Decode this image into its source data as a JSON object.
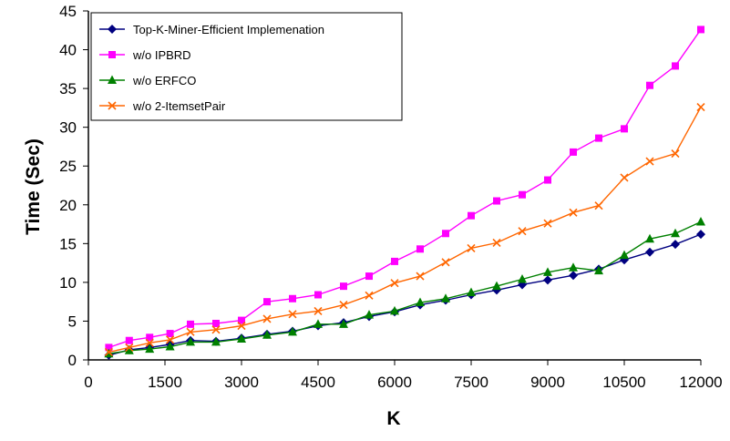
{
  "chart_data": {
    "type": "line",
    "title": "",
    "xlabel": "K",
    "ylabel": "Time (Sec)",
    "xlim": [
      0,
      12000
    ],
    "ylim": [
      0,
      45
    ],
    "xticks": [
      0,
      1500,
      3000,
      4500,
      6000,
      7500,
      9000,
      10500,
      12000
    ],
    "yticks": [
      0,
      5,
      10,
      15,
      20,
      25,
      30,
      35,
      40,
      45
    ],
    "grid": false,
    "legend_position": "top-left",
    "x": [
      400,
      800,
      1200,
      1600,
      2000,
      2500,
      3000,
      3500,
      4000,
      4500,
      5000,
      5500,
      6000,
      6500,
      7000,
      7500,
      8000,
      8500,
      9000,
      9500,
      10000,
      10500,
      11000,
      11500,
      12000
    ],
    "series": [
      {
        "name": "Top-K-Miner-Efficient Implemenation",
        "color": "#000080",
        "marker": "diamond",
        "values": [
          0.6,
          1.3,
          1.6,
          2.0,
          2.5,
          2.4,
          2.8,
          3.3,
          3.7,
          4.4,
          4.8,
          5.6,
          6.2,
          7.1,
          7.7,
          8.4,
          9.0,
          9.7,
          10.3,
          10.9,
          11.7,
          12.9,
          13.9,
          14.9,
          16.2
        ]
      },
      {
        "name": "w/o IPBRD",
        "color": "#ff00ff",
        "marker": "square",
        "values": [
          1.6,
          2.5,
          2.9,
          3.4,
          4.6,
          4.7,
          5.1,
          7.5,
          7.9,
          8.4,
          9.5,
          10.8,
          12.7,
          14.3,
          16.3,
          18.6,
          20.5,
          21.3,
          23.2,
          26.8,
          28.6,
          29.8,
          35.4,
          37.9,
          42.6
        ]
      },
      {
        "name": "w/o ERFCO",
        "color": "#008000",
        "marker": "triangle",
        "values": [
          0.8,
          1.2,
          1.4,
          1.7,
          2.3,
          2.3,
          2.7,
          3.2,
          3.6,
          4.6,
          4.6,
          5.8,
          6.3,
          7.4,
          7.9,
          8.7,
          9.5,
          10.4,
          11.3,
          11.9,
          11.5,
          13.5,
          15.6,
          16.3,
          17.8
        ]
      },
      {
        "name": "w/o 2-ItemsetPair",
        "color": "#ff6600",
        "marker": "x",
        "values": [
          1.0,
          1.6,
          2.2,
          2.6,
          3.6,
          3.9,
          4.4,
          5.3,
          5.9,
          6.3,
          7.1,
          8.3,
          9.9,
          10.8,
          12.6,
          14.4,
          15.1,
          16.6,
          17.6,
          19.0,
          19.9,
          23.5,
          25.6,
          26.6,
          32.6
        ]
      }
    ]
  }
}
